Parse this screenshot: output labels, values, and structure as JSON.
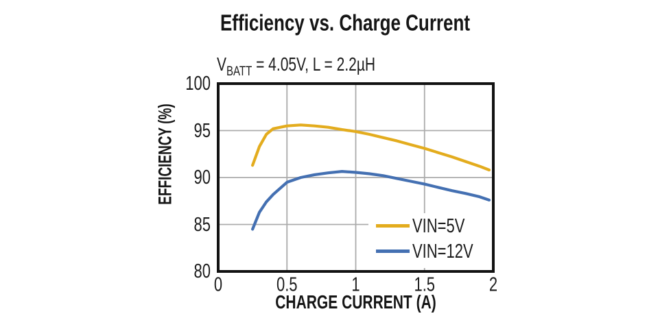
{
  "figure": {
    "title": "Efficiency vs. Charge Current",
    "subtitle": {
      "pre": "V",
      "sub": "BATT",
      "post": " = 4.05V, L = 2.2µH"
    }
  },
  "chart_data": {
    "type": "line",
    "title": "Efficiency vs. Charge Current",
    "subtitle": "VBATT = 4.05V, L = 2.2µH",
    "xlabel": "CHARGE CURRENT (A)",
    "ylabel": "EFFICIENCY (%)",
    "xlim": [
      0,
      2
    ],
    "ylim": [
      80,
      100
    ],
    "xticks": [
      0,
      0.5,
      1,
      1.5,
      2
    ],
    "xtick_labels": [
      "0",
      "0.5",
      "1",
      "1.5",
      "2"
    ],
    "yticks": [
      80,
      85,
      90,
      95,
      100
    ],
    "ytick_labels": [
      "80",
      "85",
      "90",
      "95",
      "100"
    ],
    "grid": true,
    "legend_position": "inside-lower-right",
    "x": [
      0.25,
      0.3,
      0.35,
      0.4,
      0.5,
      0.6,
      0.7,
      0.8,
      0.9,
      1.0,
      1.1,
      1.2,
      1.3,
      1.4,
      1.5,
      1.6,
      1.7,
      1.8,
      1.9,
      1.97
    ],
    "series": [
      {
        "name": "VIN=5V",
        "color": "#E3AC1E",
        "values": [
          91.3,
          93.3,
          94.6,
          95.2,
          95.5,
          95.6,
          95.5,
          95.35,
          95.1,
          94.9,
          94.6,
          94.25,
          93.9,
          93.5,
          93.1,
          92.65,
          92.2,
          91.7,
          91.2,
          90.8
        ]
      },
      {
        "name": "VIN=12V",
        "color": "#4470B2",
        "values": [
          84.5,
          86.3,
          87.4,
          88.2,
          89.5,
          90.0,
          90.3,
          90.5,
          90.65,
          90.55,
          90.4,
          90.2,
          89.9,
          89.6,
          89.3,
          88.95,
          88.6,
          88.3,
          87.95,
          87.6
        ]
      }
    ],
    "colors": {
      "gridline": "#ABABAB",
      "frame": "#121212",
      "text": "#1c1c1c"
    }
  }
}
